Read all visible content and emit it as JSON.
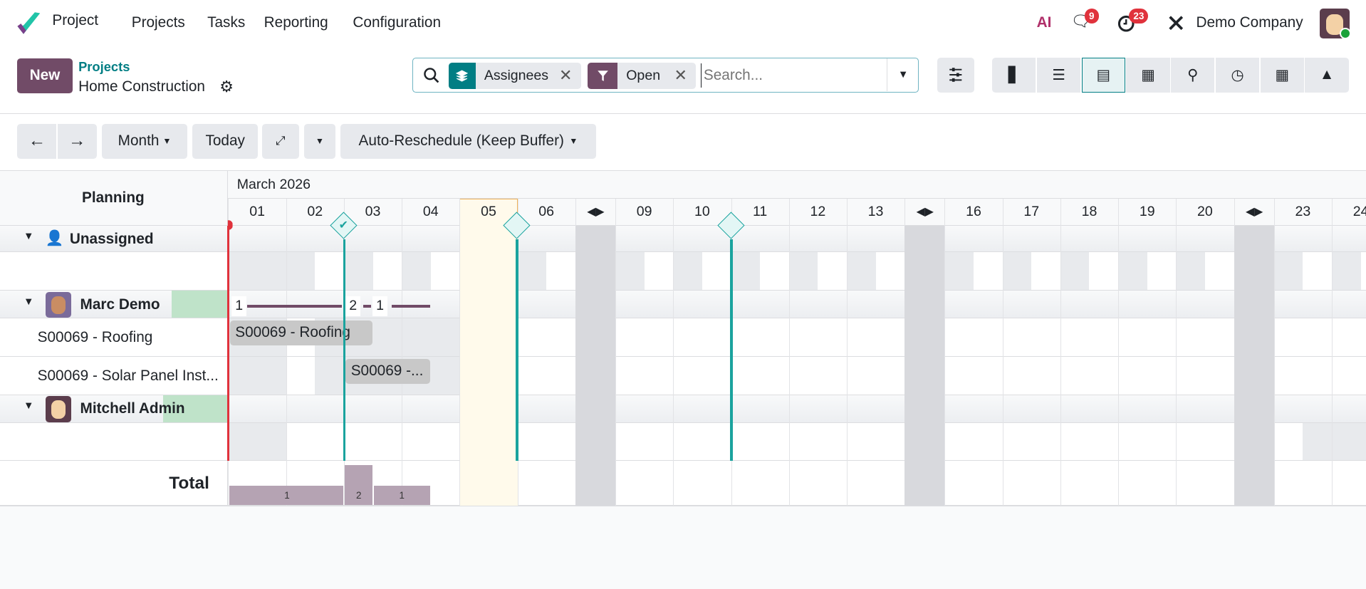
{
  "navbar": {
    "app_name": "Project",
    "menu": [
      "Projects",
      "Tasks",
      "Reporting",
      "Configuration"
    ],
    "ai_label": "AI",
    "messages_count": "9",
    "activities_count": "23",
    "company": "Demo Company"
  },
  "control_panel": {
    "new_label": "New",
    "breadcrumb_parent": "Projects",
    "breadcrumb_current": "Home Construction",
    "facets": [
      {
        "icon": "layers-icon",
        "label": "Assignees",
        "color": "#017e84"
      },
      {
        "icon": "filter-icon",
        "label": "Open",
        "color": "#714b67"
      }
    ],
    "search_placeholder": "Search...",
    "views": [
      "kanban",
      "list",
      "gantt",
      "calendar",
      "map",
      "activity",
      "pivot",
      "graph"
    ],
    "active_view": "gantt"
  },
  "toolbar": {
    "scale": "Month",
    "today": "Today",
    "reschedule": "Auto-Reschedule (Keep Buffer)"
  },
  "gantt": {
    "title": "Planning",
    "month": "March 2026",
    "today": "05",
    "days": [
      "01",
      "02",
      "03",
      "04",
      "05",
      "06",
      "|",
      "09",
      "10",
      "11",
      "12",
      "13",
      "|",
      "16",
      "17",
      "18",
      "19",
      "20",
      "|",
      "23",
      "24"
    ],
    "groups": [
      {
        "name": "Unassigned",
        "avatar": "person-icon",
        "rows": [
          ""
        ]
      },
      {
        "name": "Marc Demo",
        "avatar": "marc-avatar",
        "counts": [
          "1",
          "2",
          "1"
        ],
        "rows": [
          "S00069 - Roofing",
          "S00069 - Solar Panel Inst..."
        ]
      },
      {
        "name": "Mitchell Admin",
        "avatar": "mitchell-avatar",
        "rows": [
          ""
        ]
      }
    ],
    "pills": [
      {
        "label": "S00069 - Roofing"
      },
      {
        "label": "S00069 -..."
      }
    ],
    "total_label": "Total",
    "totals": [
      "1",
      "2",
      "1"
    ],
    "colors": {
      "accent": "#714b67",
      "milestone": "#1aa39e",
      "today_bg": "#fffaeb",
      "now_line": "#e0323c"
    }
  }
}
